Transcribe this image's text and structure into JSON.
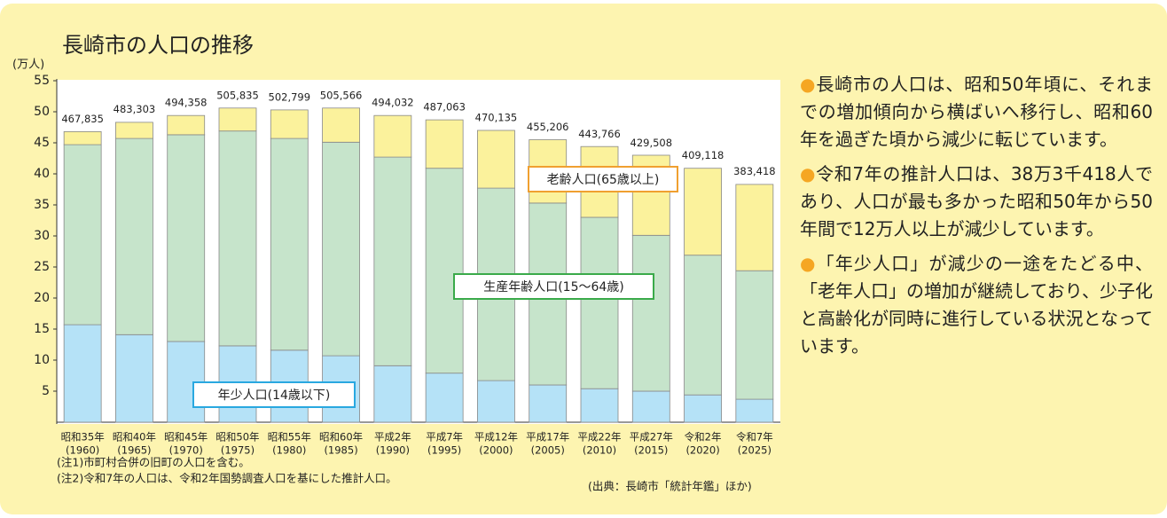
{
  "chart_data": {
    "type": "stacked_bar",
    "title": "長崎市の人口の推移",
    "y_unit": "(万人)",
    "categories": [
      "昭和35年",
      "昭和40年",
      "昭和45年",
      "昭和50年",
      "昭和55年",
      "昭和60年",
      "平成2年",
      "平成7年",
      "平成12年",
      "平成17年",
      "平成22年",
      "平成27年",
      "令和2年",
      "令和7年"
    ],
    "category_years": [
      "(1960)",
      "(1965)",
      "(1970)",
      "(1975)",
      "(1980)",
      "(1985)",
      "(1990)",
      "(1995)",
      "(2000)",
      "(2005)",
      "(2010)",
      "(2015)",
      "(2020)",
      "(2025)"
    ],
    "series": [
      {
        "name": "年少人口(14歳以下)",
        "color": "#b5e2f7",
        "label_color": "#29a8e0",
        "values": [
          15.7,
          14.1,
          13.0,
          12.3,
          11.6,
          10.7,
          9.1,
          7.9,
          6.7,
          6.0,
          5.4,
          5.0,
          4.4,
          3.7
        ]
      },
      {
        "name": "生産年齢人口(15〜64歳)",
        "color": "#c6e4cb",
        "label_color": "#3aaa4a",
        "values": [
          29.0,
          31.6,
          33.3,
          34.6,
          34.1,
          34.4,
          33.6,
          33.0,
          31.0,
          29.3,
          27.6,
          25.1,
          22.5,
          20.7
        ]
      },
      {
        "name": "老齢人口(65歳以上)",
        "color": "#fbf29c",
        "label_color": "#f0a030",
        "values": [
          2.1,
          2.6,
          3.1,
          3.7,
          4.6,
          5.5,
          6.7,
          7.8,
          9.3,
          10.2,
          11.4,
          12.9,
          14.0,
          13.9
        ]
      }
    ],
    "totals": {
      "values": [
        46.7835,
        48.3303,
        49.4358,
        50.5835,
        50.2799,
        50.5566,
        49.4032,
        48.7063,
        47.0135,
        45.5206,
        44.3766,
        42.9508,
        40.9118,
        38.3418
      ],
      "value_labels": [
        "467,835",
        "483,303",
        "494,358",
        "505,835",
        "502,799",
        "505,566",
        "494,032",
        "487,063",
        "470,135",
        "455,206",
        "443,766",
        "429,508",
        "409,118",
        "383,418"
      ]
    },
    "ylim": [
      0,
      55
    ],
    "yticks": [
      5,
      10,
      15,
      20,
      25,
      30,
      35,
      40,
      45,
      50,
      55
    ],
    "notes": [
      "(注1)市町村合併の旧町の人口を含む。",
      "(注2)令和7年の人口は、令和2年国勢調査人口を基にした推計人口。"
    ],
    "source": "(出典：長崎市「統計年鑑」ほか)"
  },
  "text": {
    "paragraphs": [
      "長崎市の人口は、昭和50年頃に、それまでの増加傾向から横ばいへ移行し、昭和60年を過ぎた頃から減少に転じています。",
      "令和7年の推計人口は、38万3千418人であり、人口が最も多かった昭和50年から50年間で12万人以上が減少しています。",
      "「年少人口」が減少の一途をたどる中、「老年人口」の増加が継続しており、少子化と高齢化が同時に進行している状況となっています。"
    ]
  }
}
